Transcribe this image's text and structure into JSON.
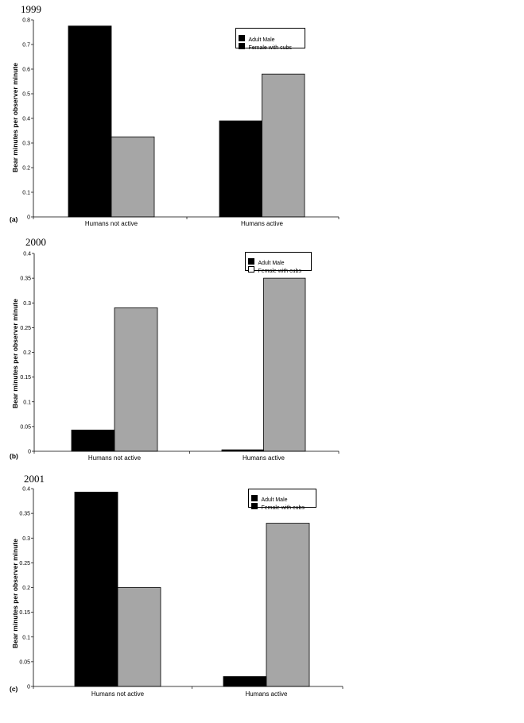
{
  "chart_data": [
    {
      "type": "bar",
      "title": "1999",
      "panel_label": "(a)",
      "ylabel": "Bear minutes per observer minute",
      "categories": [
        "Humans not active",
        "Humans active"
      ],
      "ylim": [
        0,
        0.8
      ],
      "yticks": [
        0,
        0.1,
        0.2,
        0.3,
        0.4,
        0.5,
        0.6,
        0.7,
        0.8
      ],
      "yticklabels": [
        "0",
        "0.1",
        "0.2",
        "0.3",
        "0.4",
        "0.5",
        "0.6",
        "0.7",
        "0.8"
      ],
      "legend_placement": "top-right",
      "series": [
        {
          "name": "Adult Male",
          "color": "#000000",
          "values": [
            0.775,
            0.39
          ]
        },
        {
          "name": "Female with cubs",
          "color": "#a6a6a6",
          "values": [
            0.325,
            0.58
          ]
        }
      ]
    },
    {
      "type": "bar",
      "title": "2000",
      "panel_label": "(b)",
      "ylabel": "Bear minutes per observer minute",
      "categories": [
        "Humans not active",
        "Humans active"
      ],
      "ylim": [
        0,
        0.4
      ],
      "yticks": [
        0,
        0.05,
        0.1,
        0.15,
        0.2,
        0.25,
        0.3,
        0.35,
        0.4
      ],
      "yticklabels": [
        "0",
        "0.05",
        "0.1",
        "0.15",
        "0.2",
        "0.25",
        "0.3",
        "0.35",
        "0.4"
      ],
      "legend_placement": "top-right",
      "series": [
        {
          "name": "Adult Male",
          "color": "#000000",
          "values": [
            0.043,
            0.003
          ]
        },
        {
          "name": "Female with cubs",
          "color": "#a6a6a6",
          "values": [
            0.29,
            0.35
          ]
        }
      ]
    },
    {
      "type": "bar",
      "title": "2001",
      "panel_label": "(c)",
      "ylabel": "Bear minutes per observer minute",
      "categories": [
        "Humans not active",
        "Humans active"
      ],
      "ylim": [
        0,
        0.4
      ],
      "yticks": [
        0,
        0.05,
        0.1,
        0.15,
        0.2,
        0.25,
        0.3,
        0.35,
        0.4
      ],
      "yticklabels": [
        "0",
        "0.05",
        "0.1",
        "0.15",
        "0.2",
        "0.25",
        "0.3",
        "0.35",
        "0.4"
      ],
      "legend_placement": "top-right",
      "series": [
        {
          "name": "Adult Male",
          "color": "#000000",
          "values": [
            0.393,
            0.02
          ]
        },
        {
          "name": "Female with cubs",
          "color": "#a6a6a6",
          "values": [
            0.2,
            0.33
          ]
        }
      ]
    }
  ]
}
